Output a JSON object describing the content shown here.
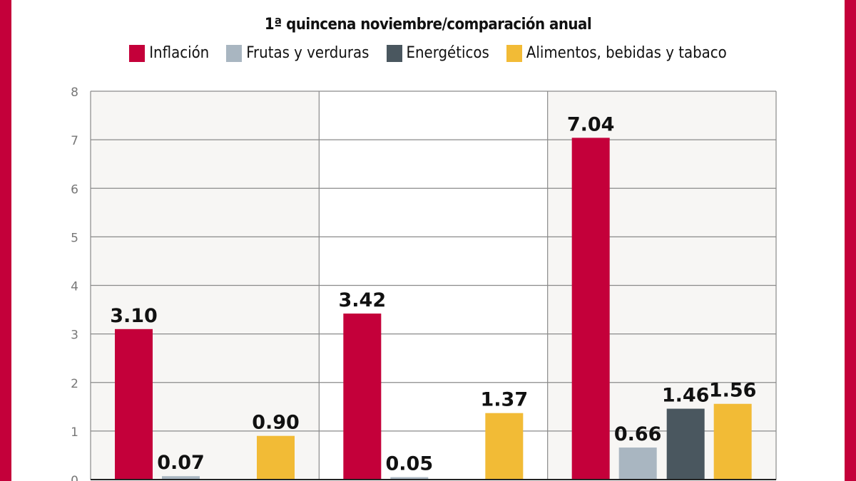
{
  "chart_data": {
    "type": "bar",
    "title": "1ª quincena noviembre/comparación anual",
    "categories": [
      "",
      "",
      ""
    ],
    "series": [
      {
        "name": "Inflación",
        "color": "#c4003a",
        "values": [
          3.1,
          3.42,
          7.04
        ]
      },
      {
        "name": "Frutas y verduras",
        "color": "#a9b6c1",
        "values": [
          0.07,
          0.05,
          0.66
        ]
      },
      {
        "name": "Energéticos",
        "color": "#4a575f",
        "values": [
          null,
          null,
          1.46
        ]
      },
      {
        "name": "Alimentos, bebidas y tabaco",
        "color": "#f2bb36",
        "values": [
          0.9,
          1.37,
          1.56
        ]
      }
    ],
    "ylim": [
      0,
      8
    ],
    "yticks": [
      0,
      1,
      2,
      3,
      4,
      5,
      6,
      7,
      8
    ],
    "grid": true,
    "legend_position": "top",
    "xlabel": "",
    "ylabel": ""
  }
}
